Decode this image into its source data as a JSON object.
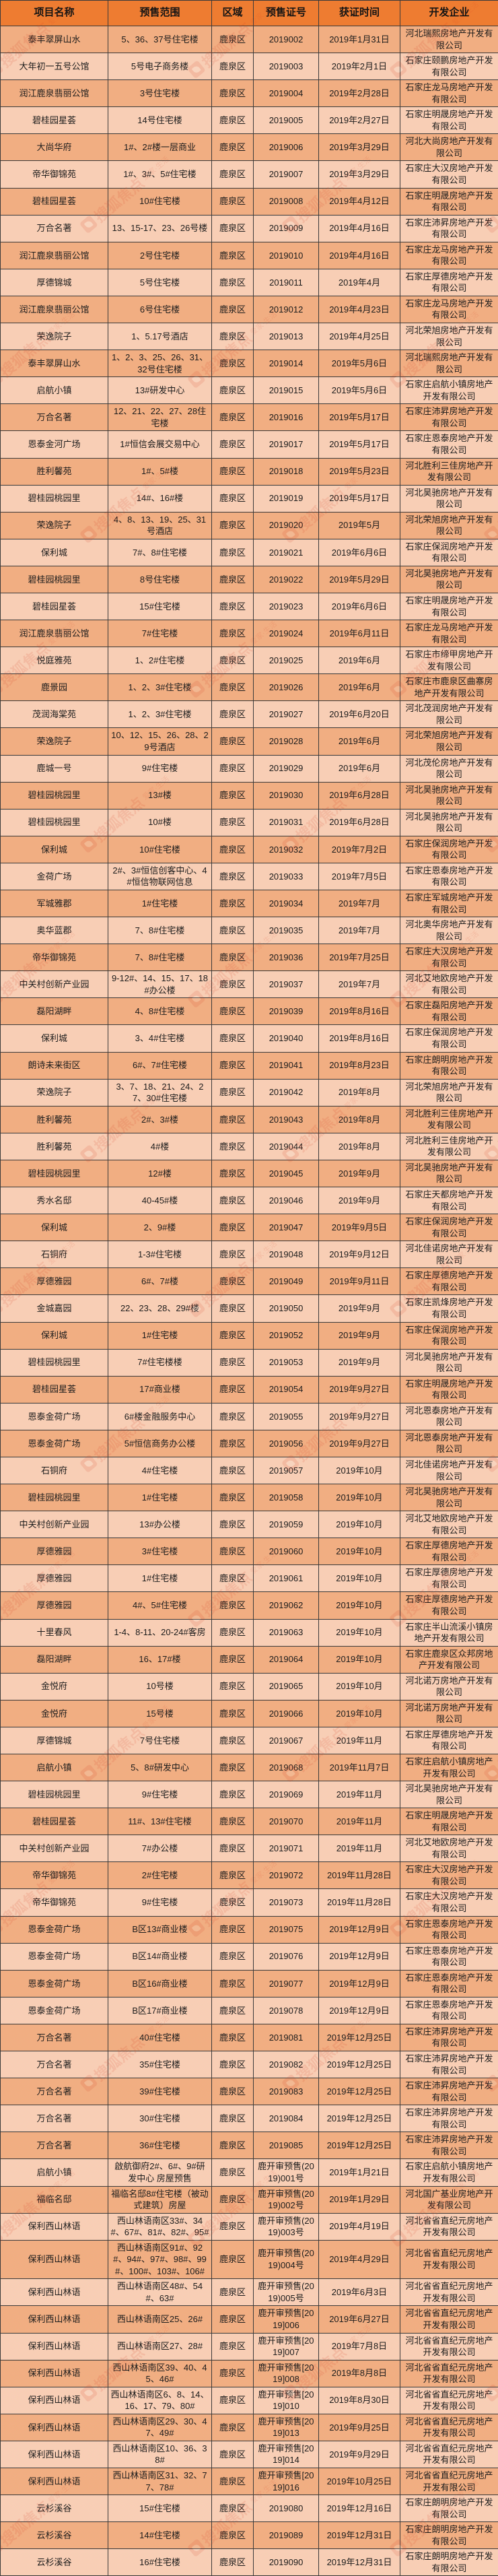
{
  "watermark": {
    "brand": "搜狐焦点",
    "tagline": "爱家·生活"
  },
  "colors": {
    "header_bg": "#ee7c31",
    "row_dark": "#f1ae82",
    "row_light": "#f8ceb5",
    "border": "#3a3a3a",
    "watermark_red": "#d93a21"
  },
  "table": {
    "columns": [
      {
        "key": "name",
        "label": "项目名称"
      },
      {
        "key": "scope",
        "label": "预售范围"
      },
      {
        "key": "district",
        "label": "区域"
      },
      {
        "key": "cert",
        "label": "预售证号"
      },
      {
        "key": "date",
        "label": "获证时间"
      },
      {
        "key": "developer",
        "label": "开发企业"
      }
    ],
    "rows": [
      {
        "name": "泰丰翠屏山水",
        "scope": "5、36、37号住宅楼",
        "district": "鹿泉区",
        "cert": "2019002",
        "date": "2019年1月31日",
        "developer": "河北瑞熙房地产开发有限公司"
      },
      {
        "name": "大年初一五号公馆",
        "scope": "5号电子商务楼",
        "district": "鹿泉区",
        "cert": "2019003",
        "date": "2019年2月1日",
        "developer": "石家庄颐鹏房地产开发有限公司"
      },
      {
        "name": "润江鹿泉翡丽公馆",
        "scope": "3号住宅楼",
        "district": "鹿泉区",
        "cert": "2019004",
        "date": "2019年2月28日",
        "developer": "石家庄龙马房地产开发有限公司"
      },
      {
        "name": "碧桂园星荟",
        "scope": "14号住宅楼",
        "district": "鹿泉区",
        "cert": "2019005",
        "date": "2019年2月27日",
        "developer": "石家庄明晟房地产开发有限公司"
      },
      {
        "name": "大尚华府",
        "scope": "1#、2#楼一层商业",
        "district": "鹿泉区",
        "cert": "2019006",
        "date": "2019年3月29日",
        "developer": "河北大尚房地产开发有限公司"
      },
      {
        "name": "帝华御锦苑",
        "scope": "1#、3#、5#住宅楼",
        "district": "鹿泉区",
        "cert": "2019007",
        "date": "2019年3月29日",
        "developer": "石家庄大汉房地产开发有限公司"
      },
      {
        "name": "碧桂园星荟",
        "scope": "10#住宅楼",
        "district": "鹿泉区",
        "cert": "2019008",
        "date": "2019年4月12日",
        "developer": "石家庄明晟房地产开发有限公司"
      },
      {
        "name": "万合名著",
        "scope": "13、15-17、23、26号楼",
        "district": "鹿泉区",
        "cert": "2019009",
        "date": "2019年4月16日",
        "developer": "石家庄沛昇房地产开发有限公司"
      },
      {
        "name": "润江鹿泉翡丽公馆",
        "scope": "2号住宅楼",
        "district": "鹿泉区",
        "cert": "2019010",
        "date": "2019年4月16日",
        "developer": "石家庄龙马房地产开发有限公司"
      },
      {
        "name": "厚德锦城",
        "scope": "5号住宅楼",
        "district": "鹿泉区",
        "cert": "2019011",
        "date": "2019年4月",
        "developer": "石家庄厚德房地产开发有限公司"
      },
      {
        "name": "润江鹿泉翡丽公馆",
        "scope": "6号住宅楼",
        "district": "鹿泉区",
        "cert": "2019012",
        "date": "2019年4月23日",
        "developer": "石家庄龙马房地产开发有限公司"
      },
      {
        "name": "荣逸院子",
        "scope": "1、5.17号酒店",
        "district": "鹿泉区",
        "cert": "2019013",
        "date": "2019年4月25日",
        "developer": "河北荣旭房地产开发有限公司"
      },
      {
        "name": "泰丰翠屏山水",
        "scope": "1、2、3、25、26、31、32号住宅楼",
        "district": "鹿泉区",
        "cert": "2019014",
        "date": "2019年5月6日",
        "developer": "河北瑞熙房地产开发有限公司"
      },
      {
        "name": "启航小镇",
        "scope": "13#研发中心",
        "district": "鹿泉区",
        "cert": "2019015",
        "date": "2019年5月6日",
        "developer": "石家庄启航小镇房地产开发有限公司"
      },
      {
        "name": "万合名著",
        "scope": "12、21、22、27、28住宅楼",
        "district": "鹿泉区",
        "cert": "2019016",
        "date": "2019年5月17日",
        "developer": "石家庄沛昇房地产开发有限公司"
      },
      {
        "name": "恩泰金河广场",
        "scope": "1#恒信会展交易中心",
        "district": "鹿泉区",
        "cert": "2019017",
        "date": "2019年5月17日",
        "developer": "石家庄恩泰房地产开发有限公司"
      },
      {
        "name": "胜利馨苑",
        "scope": "1#、5#楼",
        "district": "鹿泉区",
        "cert": "2019018",
        "date": "2019年5月23日",
        "developer": "河北胜利三佳房地产开发有限公司"
      },
      {
        "name": "碧桂园桃园里",
        "scope": "14#、16#楼",
        "district": "鹿泉区",
        "cert": "2019019",
        "date": "2019年5月17日",
        "developer": "河北昊驰房地产开发有限公司"
      },
      {
        "name": "荣逸院子",
        "scope": "4、8、13、19、25、31号酒店",
        "district": "鹿泉区",
        "cert": "2019020",
        "date": "2019年5月",
        "developer": "河北荣旭房地产开发有限公司"
      },
      {
        "name": "保利城",
        "scope": "7#、8#住宅楼",
        "district": "鹿泉区",
        "cert": "2019021",
        "date": "2019年6月6日",
        "developer": "石家庄保润房地产开发有限公司"
      },
      {
        "name": "碧桂园桃园里",
        "scope": "8号住宅楼",
        "district": "鹿泉区",
        "cert": "2019022",
        "date": "2019年5月29日",
        "developer": "河北昊驰房地产开发有限公司"
      },
      {
        "name": "碧桂园星荟",
        "scope": "15#住宅楼",
        "district": "鹿泉区",
        "cert": "2019023",
        "date": "2019年6月6日",
        "developer": "石家庄明晟房地产开发有限公司"
      },
      {
        "name": "润江鹿泉翡丽公馆",
        "scope": "7#住宅楼",
        "district": "鹿泉区",
        "cert": "2019024",
        "date": "2019年6月11日",
        "developer": "石家庄龙马房地产开发有限公司"
      },
      {
        "name": "悦庭雅苑",
        "scope": "1、2#住宅楼",
        "district": "鹿泉区",
        "cert": "2019025",
        "date": "2019年6月",
        "developer": "石家庄市缔甲房地产开发有限公司"
      },
      {
        "name": "鹿景园",
        "scope": "1、2、3#住宅楼",
        "district": "鹿泉区",
        "cert": "2019026",
        "date": "2019年6月",
        "developer": "石家庄市鹿泉区曲寨房地产开发有限公司"
      },
      {
        "name": "茂润海棠苑",
        "scope": "1、2、3#住宅楼",
        "district": "鹿泉区",
        "cert": "2019027",
        "date": "2019年6月20日",
        "developer": "河北茂润房地产开发有限公司"
      },
      {
        "name": "荣逸院子",
        "scope": "10、12、15、26、28、29号酒店",
        "district": "鹿泉区",
        "cert": "2019028",
        "date": "2019年6月",
        "developer": "河北荣旭房地产开发有限公司"
      },
      {
        "name": "鹿城一号",
        "scope": "9#住宅楼",
        "district": "鹿泉区",
        "cert": "2019029",
        "date": "2019年6月",
        "developer": "河北茂伦房地产开发有限公司"
      },
      {
        "name": "碧桂园桃园里",
        "scope": "13#楼",
        "district": "鹿泉区",
        "cert": "2019030",
        "date": "2019年6月28日",
        "developer": "河北昊驰房地产开发有限公司"
      },
      {
        "name": "碧桂园桃园里",
        "scope": "10#楼",
        "district": "鹿泉区",
        "cert": "2019031",
        "date": "2019年6月28日",
        "developer": "河北昊驰房地产开发有限公司"
      },
      {
        "name": "保利城",
        "scope": "10#住宅楼",
        "district": "鹿泉区",
        "cert": "2019032",
        "date": "2019年7月2日",
        "developer": "石家庄保润房地产开发有限公司"
      },
      {
        "name": "金荷广场",
        "scope": "2#、3#恒信创客中心、4#恒信物联网信息",
        "district": "鹿泉区",
        "cert": "2019033",
        "date": "2019年7月5日",
        "developer": "石家庄恩泰房地产开发有限公司"
      },
      {
        "name": "军城雅郡",
        "scope": "1#住宅楼",
        "district": "鹿泉区",
        "cert": "2019034",
        "date": "2019年7月",
        "developer": "石家庄军城房地产开发有限公司"
      },
      {
        "name": "奥华蓝郡",
        "scope": "7、8#住宅楼",
        "district": "鹿泉区",
        "cert": "2019035",
        "date": "2019年7月",
        "developer": "河北奥华房地产开发有限公司"
      },
      {
        "name": "帝华御锦苑",
        "scope": "7、8#住宅楼",
        "district": "鹿泉区",
        "cert": "2019036",
        "date": "2019年7月25日",
        "developer": "石家庄大汉房地产开发有限公司"
      },
      {
        "name": "中关村创新产业园",
        "scope": "9-12#、14、15、17、18#办公楼",
        "district": "鹿泉区",
        "cert": "2019037",
        "date": "2019年7月",
        "developer": "河北艾地欧房地产开发有限公司"
      },
      {
        "name": "磊阳湖畔",
        "scope": "4、8#住宅楼",
        "district": "鹿泉区",
        "cert": "2019039",
        "date": "2019年8月16日",
        "developer": "石家庄磊阳房地产开发有限公司"
      },
      {
        "name": "保利城",
        "scope": "3、4#住宅楼",
        "district": "鹿泉区",
        "cert": "2019040",
        "date": "2019年8月16日",
        "developer": "石家庄保润房地产开发有限公司"
      },
      {
        "name": "朗诗未来街区",
        "scope": "6#、7#住宅楼",
        "district": "鹿泉区",
        "cert": "2019041",
        "date": "2019年8月23日",
        "developer": "石家庄朗明房地产开发有限公司"
      },
      {
        "name": "荣逸院子",
        "scope": "3、7、18、21、24、27、30#住宅楼",
        "district": "鹿泉区",
        "cert": "2019042",
        "date": "2019年8月",
        "developer": "河北荣旭房地产开发有限公司"
      },
      {
        "name": "胜利馨苑",
        "scope": "2#、3#楼",
        "district": "鹿泉区",
        "cert": "2019043",
        "date": "2019年8月",
        "developer": "河北胜利三佳房地产开发有限公司"
      },
      {
        "name": "胜利馨苑",
        "scope": "4#楼",
        "district": "鹿泉区",
        "cert": "2019044",
        "date": "2019年8月",
        "developer": "河北胜利三佳房地产开发有限公司"
      },
      {
        "name": "碧桂园桃园里",
        "scope": "12#楼",
        "district": "鹿泉区",
        "cert": "2019045",
        "date": "2019年9月",
        "developer": "河北昊驰房地产开发有限公司"
      },
      {
        "name": "秀水名邸",
        "scope": "40-45#楼",
        "district": "鹿泉区",
        "cert": "2019046",
        "date": "2019年9月",
        "developer": "石家庄天都房地产开发有限公司"
      },
      {
        "name": "保利城",
        "scope": "2、9#楼",
        "district": "鹿泉区",
        "cert": "2019047",
        "date": "2019年9月5日",
        "developer": "石家庄保润房地产开发有限公司"
      },
      {
        "name": "石铜府",
        "scope": "1-3#住宅楼",
        "district": "鹿泉区",
        "cert": "2019048",
        "date": "2019年9月12日",
        "developer": "河北佳诺房地产开发有限公司"
      },
      {
        "name": "厚德雅园",
        "scope": "6#、7#楼",
        "district": "鹿泉区",
        "cert": "2019049",
        "date": "2019年9月11日",
        "developer": "石家庄厚德房地产开发有限公司"
      },
      {
        "name": "金城嘉园",
        "scope": "22、23、28、29#楼",
        "district": "鹿泉区",
        "cert": "2019050",
        "date": "2019年9月",
        "developer": "石家庄凯烽房地产开发有限公司"
      },
      {
        "name": "保利城",
        "scope": "1#住宅楼",
        "district": "鹿泉区",
        "cert": "2019052",
        "date": "2019年9月",
        "developer": "石家庄保润房地产开发有限公司"
      },
      {
        "name": "碧桂园桃园里",
        "scope": "7#住宅楼楼",
        "district": "鹿泉区",
        "cert": "2019053",
        "date": "2019年9月",
        "developer": "河北昊驰房地产开发有限公司"
      },
      {
        "name": "碧桂园星荟",
        "scope": "17#商业楼",
        "district": "鹿泉区",
        "cert": "2019054",
        "date": "2019年9月27日",
        "developer": "石家庄明晟房地产开发有限公司"
      },
      {
        "name": "恩泰金荷广场",
        "scope": "6#楼金融服务中心",
        "district": "鹿泉区",
        "cert": "2019055",
        "date": "2019年9月27日",
        "developer": "河北恩泰房地产开发有限公司"
      },
      {
        "name": "恩泰金荷广场",
        "scope": "5#恒信商务办公楼",
        "district": "鹿泉区",
        "cert": "2019056",
        "date": "2019年9月27日",
        "developer": "河北恩泰房地产开发有限公司"
      },
      {
        "name": "石铜府",
        "scope": "4#住宅楼",
        "district": "鹿泉区",
        "cert": "2019057",
        "date": "2019年10月",
        "developer": "河北佳诺房地产开发有限公司"
      },
      {
        "name": "碧桂园桃园里",
        "scope": "1#住宅楼",
        "district": "鹿泉区",
        "cert": "2019058",
        "date": "2019年10月",
        "developer": "河北昊驰房地产开发有限公司"
      },
      {
        "name": "中关村创新产业园",
        "scope": "13#办公楼",
        "district": "鹿泉区",
        "cert": "2019059",
        "date": "2019年10月",
        "developer": "河北艾地欧房地产开发有限公司"
      },
      {
        "name": "厚德雅园",
        "scope": "3#住宅楼",
        "district": "鹿泉区",
        "cert": "2019060",
        "date": "2019年10月",
        "developer": "石家庄厚德房地产开发有限公司"
      },
      {
        "name": "厚德雅园",
        "scope": "1#住宅楼",
        "district": "鹿泉区",
        "cert": "2019061",
        "date": "2019年10月",
        "developer": "石家庄厚德房地产开发有限公司"
      },
      {
        "name": "厚德雅园",
        "scope": "4#、5#住宅楼",
        "district": "鹿泉区",
        "cert": "2019062",
        "date": "2019年10月",
        "developer": "石家庄厚德房地产开发有限公司"
      },
      {
        "name": "十里春风",
        "scope": "1-4、8-11、20-24#客房",
        "district": "鹿泉区",
        "cert": "2019063",
        "date": "2019年10月",
        "developer": "石家庄半山流溪小镇房地产开发有限公司"
      },
      {
        "name": "磊阳湖畔",
        "scope": "16、17#楼",
        "district": "鹿泉区",
        "cert": "2019064",
        "date": "2019年10月",
        "developer": "石家庄鹿泉区众邦房地产开发有限公司"
      },
      {
        "name": "金悦府",
        "scope": "10号楼",
        "district": "鹿泉区",
        "cert": "2019065",
        "date": "2019年10月",
        "developer": "河北诺万房地产开发有限公司"
      },
      {
        "name": "金悦府",
        "scope": "15号楼",
        "district": "鹿泉区",
        "cert": "2019066",
        "date": "2019年10月",
        "developer": "河北诺万房地产开发有限公司"
      },
      {
        "name": "厚德锦城",
        "scope": "7号住宅楼",
        "district": "鹿泉区",
        "cert": "2019067",
        "date": "2019年11月",
        "developer": "石家庄厚德房地产开发有限公司"
      },
      {
        "name": "启航小镇",
        "scope": "5、8#研发中心",
        "district": "鹿泉区",
        "cert": "2019068",
        "date": "2019年11月7日",
        "developer": "石家庄启航小镇房地产开发有限公司"
      },
      {
        "name": "碧桂园桃园里",
        "scope": "9#住宅楼",
        "district": "鹿泉区",
        "cert": "2019069",
        "date": "2019年11月",
        "developer": "河北昊驰房地产开发有限公司"
      },
      {
        "name": "碧桂园星荟",
        "scope": "11#、13#住宅楼",
        "district": "鹿泉区",
        "cert": "2019070",
        "date": "2019年11月",
        "developer": "石家庄明晟房地产开发有限公司"
      },
      {
        "name": "中关村创新产业园",
        "scope": "7#办公楼",
        "district": "鹿泉区",
        "cert": "2019071",
        "date": "2019年11月",
        "developer": "河北艾地欧房地产开发有限公司"
      },
      {
        "name": "帝华御锦苑",
        "scope": "2#住宅楼",
        "district": "鹿泉区",
        "cert": "2019072",
        "date": "2019年11月28日",
        "developer": "石家庄大汉房地产开发有限公司"
      },
      {
        "name": "帝华御锦苑",
        "scope": "9#住宅楼",
        "district": "鹿泉区",
        "cert": "2019073",
        "date": "2019年11月28日",
        "developer": "石家庄大汉房地产开发有限公司"
      },
      {
        "name": "恩泰金荷广场",
        "scope": "B区13#商业楼",
        "district": "鹿泉区",
        "cert": "2019075",
        "date": "2019年12月9日",
        "developer": "石家庄恩泰房地产开发有限公司"
      },
      {
        "name": "恩泰金荷广场",
        "scope": "B区14#商业楼",
        "district": "鹿泉区",
        "cert": "2019076",
        "date": "2019年12月9日",
        "developer": "石家庄恩泰房地产开发有限公司"
      },
      {
        "name": "恩泰金荷广场",
        "scope": "B区16#商业楼",
        "district": "鹿泉区",
        "cert": "2019077",
        "date": "2019年12月9日",
        "developer": "石家庄恩泰房地产开发有限公司"
      },
      {
        "name": "恩泰金荷广场",
        "scope": "B区17#商业楼",
        "district": "鹿泉区",
        "cert": "2019078",
        "date": "2019年12月9日",
        "developer": "石家庄恩泰房地产开发有限公司"
      },
      {
        "name": "万合名著",
        "scope": "40#住宅楼",
        "district": "鹿泉区",
        "cert": "2019081",
        "date": "2019年12月25日",
        "developer": "石家庄沛昇房地产开发有限公司"
      },
      {
        "name": "万合名著",
        "scope": "35#住宅楼",
        "district": "鹿泉区",
        "cert": "2019082",
        "date": "2019年12月25日",
        "developer": "石家庄沛昇房地产开发有限公司"
      },
      {
        "name": "万合名著",
        "scope": "39#住宅楼",
        "district": "鹿泉区",
        "cert": "2019083",
        "date": "2019年12月25日",
        "developer": "石家庄沛昇房地产开发有限公司"
      },
      {
        "name": "万合名著",
        "scope": "30#住宅楼",
        "district": "鹿泉区",
        "cert": "2019084",
        "date": "2019年12月25日",
        "developer": "石家庄沛昇房地产开发有限公司"
      },
      {
        "name": "万合名著",
        "scope": "36#住宅楼",
        "district": "鹿泉区",
        "cert": "2019085",
        "date": "2019年12月25日",
        "developer": "石家庄沛昇房地产开发有限公司"
      },
      {
        "name": "启航小镇",
        "scope": "啟航御府2#、6#、9#研发中心 房屋预售",
        "district": "鹿泉区",
        "cert": "鹿开审预售(2019)001号",
        "date": "2019年1月21日",
        "developer": "石家庄启航小镇房地产开发有限公司"
      },
      {
        "name": "福临名邸",
        "scope": "福临名邸8#住宅楼（被动式建筑）房屋",
        "district": "鹿泉区",
        "cert": "鹿开审预售(2019)002号",
        "date": "2019年1月29日",
        "developer": "河北国广基业房地产开发有限公司"
      },
      {
        "name": "保利西山林语",
        "scope": "西山林语南区33#、34#、67#、81#、82#、95#",
        "district": "鹿泉区",
        "cert": "鹿开审预售(2019)003号",
        "date": "2019年4月19日",
        "developer": "河北省省直纪元房地产开发有限公司"
      },
      {
        "name": "保利西山林语",
        "scope": "西山林语南区91#、92#、94#、97#、98#、99#、100#、103#、106#",
        "district": "鹿泉区",
        "cert": "鹿开审预售(2019)004号",
        "date": "2019年4月29日",
        "developer": "河北省省直纪元房地产开发有限公司"
      },
      {
        "name": "保利西山林语",
        "scope": "西山林语南区48#、54#、63#",
        "district": "鹿泉区",
        "cert": "鹿开审预售(2019)005号",
        "date": "2019年6月3日",
        "developer": "河北省省直纪元房地产开发有限公司"
      },
      {
        "name": "保利西山林语",
        "scope": "西山林语南区25、26#",
        "district": "鹿泉区",
        "cert": "鹿开审预售[2019]006",
        "date": "2019年6月27日",
        "developer": "河北省省直纪元房地产开发有限公司"
      },
      {
        "name": "保利西山林语",
        "scope": "西山林语南区27、28#",
        "district": "鹿泉区",
        "cert": "鹿开审预售[2019]007",
        "date": "2019年7月8日",
        "developer": "河北省省直纪元房地产开发有限公司"
      },
      {
        "name": "保利西山林语",
        "scope": "西山林语南区39、40、45、46#",
        "district": "鹿泉区",
        "cert": "鹿开审预售[2019]008",
        "date": "2019年8月8日",
        "developer": "河北省省直纪元房地产开发有限公司"
      },
      {
        "name": "保利西山林语",
        "scope": "西山林语南区6、8、14、16、17、79、80#",
        "district": "鹿泉区",
        "cert": "鹿开审预售[2019]010",
        "date": "2019年8月30日",
        "developer": "河北省省直纪元房地产开发有限公司"
      },
      {
        "name": "保利西山林语",
        "scope": "西山林语南区29、30、47、49#",
        "district": "鹿泉区",
        "cert": "鹿开审预售[2019]013",
        "date": "2019年9月25日",
        "developer": "河北省省直纪元房地产开发有限公司"
      },
      {
        "name": "保利西山林语",
        "scope": "西山林语南区10、36、38#",
        "district": "鹿泉区",
        "cert": "鹿开审预售[2019]014",
        "date": "2019年9月29日",
        "developer": "河北省省直纪元房地产开发有限公司"
      },
      {
        "name": "保利西山林语",
        "scope": "西山林语南区31、32、77、78#",
        "district": "鹿泉区",
        "cert": "鹿开审预售[2019]016",
        "date": "2019年10月25日",
        "developer": "河北省省直纪元房地产开发有限公司"
      },
      {
        "name": "云杉溪谷",
        "scope": "15#住宅楼",
        "district": "鹿泉区",
        "cert": "2019080",
        "date": "2019年12月16日",
        "developer": "石家庄朗明房地产开发有限公司"
      },
      {
        "name": "云杉溪谷",
        "scope": "14#住宅楼",
        "district": "鹿泉区",
        "cert": "2019089",
        "date": "2019年12月31日",
        "developer": "石家庄朗明房地产开发有限公司"
      },
      {
        "name": "云杉溪谷",
        "scope": "16#住宅楼",
        "district": "鹿泉区",
        "cert": "2019090",
        "date": "2019年12月31日",
        "developer": "石家庄朗明房地产开发有限公司"
      }
    ]
  }
}
